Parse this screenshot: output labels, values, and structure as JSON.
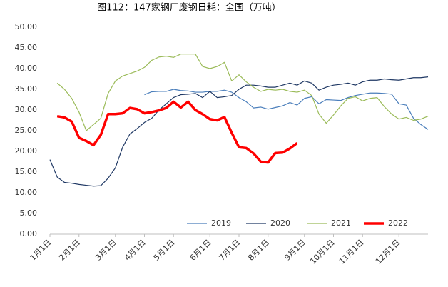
{
  "chart_data": {
    "type": "line",
    "title": "图112：147家钢厂废钢日耗：全国（万吨）",
    "categories": [
      "1月1日",
      null,
      null,
      null,
      "2月1日",
      null,
      null,
      null,
      null,
      "3月1日",
      null,
      null,
      null,
      "4月1日",
      null,
      null,
      null,
      "5月1日",
      null,
      null,
      null,
      null,
      "6月1日",
      null,
      null,
      null,
      "7月1日",
      null,
      null,
      null,
      "8月1日",
      null,
      null,
      null,
      null,
      "9月1日",
      null,
      null,
      null,
      "10月1日",
      null,
      null,
      null,
      "11月1日",
      null,
      null,
      null,
      null,
      "12月1日",
      null,
      null,
      null,
      null
    ],
    "ylim": [
      0,
      50
    ],
    "yticks": [
      {
        "value": 0,
        "label": "0.00"
      },
      {
        "value": 5,
        "label": "5.00"
      },
      {
        "value": 10,
        "label": "10.00"
      },
      {
        "value": 15,
        "label": "15.00"
      },
      {
        "value": 20,
        "label": "20.00"
      },
      {
        "value": 25,
        "label": "25.00"
      },
      {
        "value": 30,
        "label": "30.00"
      },
      {
        "value": 35,
        "label": "35.00"
      },
      {
        "value": 40,
        "label": "40.00"
      },
      {
        "value": 45,
        "label": "45.00"
      },
      {
        "value": 50,
        "label": "50.00"
      }
    ],
    "grid": false,
    "series": [
      {
        "name": "2019",
        "color": "#4a7ebb",
        "width": 1.2,
        "values": [
          null,
          null,
          null,
          null,
          null,
          null,
          null,
          null,
          null,
          null,
          null,
          null,
          null,
          33.7,
          34.4,
          34.5,
          34.5,
          35,
          34.7,
          34.6,
          34.3,
          34.3,
          34.5,
          34.5,
          34.8,
          34.3,
          33,
          32,
          30.5,
          30.7,
          30.2,
          30.6,
          31,
          31.8,
          31.2,
          32.8,
          33.2,
          31.5,
          32.5,
          32.4,
          32.3,
          33,
          33.5,
          33.8,
          34.1,
          34.1,
          34,
          33.8,
          31.5,
          31.2,
          28,
          26.5,
          25.3
        ]
      },
      {
        "name": "2020",
        "color": "#1f3864",
        "width": 1.2,
        "values": [
          18,
          13.8,
          12.5,
          12.3,
          12,
          11.8,
          11.6,
          11.7,
          13.5,
          16,
          21,
          24.2,
          25.5,
          27,
          28,
          30,
          31.5,
          33,
          33.7,
          33.8,
          34,
          33,
          34.5,
          33,
          33.2,
          33.5,
          35,
          36,
          36,
          35.8,
          35.5,
          35.5,
          36,
          36.5,
          36,
          37,
          36.5,
          34.8,
          35.5,
          36,
          36.2,
          36.5,
          36,
          36.8,
          37.2,
          37.2,
          37.5,
          37.3,
          37.2,
          37.5,
          37.8,
          37.8,
          38
        ]
      },
      {
        "name": "2021",
        "color": "#9bbb59",
        "width": 1.2,
        "values": [
          null,
          36.5,
          35,
          32.8,
          29.5,
          25,
          26.5,
          28,
          34,
          37,
          38.2,
          38.8,
          39.4,
          40.3,
          42,
          42.8,
          43,
          42.7,
          43.5,
          43.5,
          43.5,
          40.5,
          40,
          40.5,
          41.5,
          37,
          38.5,
          36.8,
          35.5,
          34.5,
          35,
          34.8,
          35,
          34.5,
          34.3,
          34.8,
          33.5,
          29,
          26.8,
          28.8,
          31,
          32.8,
          33.2,
          32.2,
          32.8,
          33,
          30.8,
          29,
          27.8,
          28.2,
          27.5,
          27.8,
          28.5
        ]
      },
      {
        "name": "2022",
        "color": "#ff0000",
        "width": 3.5,
        "values": [
          null,
          28.5,
          28.2,
          27.2,
          23.3,
          22.5,
          21.5,
          24,
          29,
          29,
          29.2,
          30.5,
          30.2,
          29.2,
          29.5,
          29.9,
          30.5,
          32,
          30.6,
          32,
          30,
          29,
          27.8,
          27.5,
          28.3,
          24.5,
          21,
          20.8,
          19.5,
          17.5,
          17.3,
          19.6,
          19.7,
          20.7,
          22,
          null,
          null,
          null,
          null,
          null,
          null,
          null,
          null,
          null,
          null,
          null,
          null,
          null,
          null,
          null,
          null,
          null,
          null
        ]
      }
    ]
  }
}
